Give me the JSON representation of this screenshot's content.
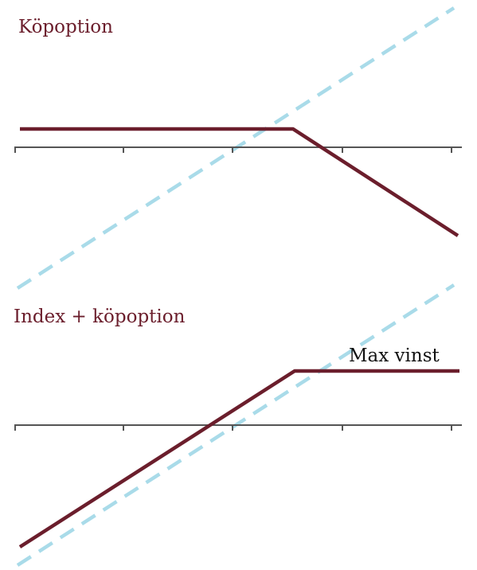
{
  "panels": [
    {
      "title": "Köpoption"
    },
    {
      "title": "Index + köpoption",
      "annotation": "Max vinst"
    }
  ]
}
